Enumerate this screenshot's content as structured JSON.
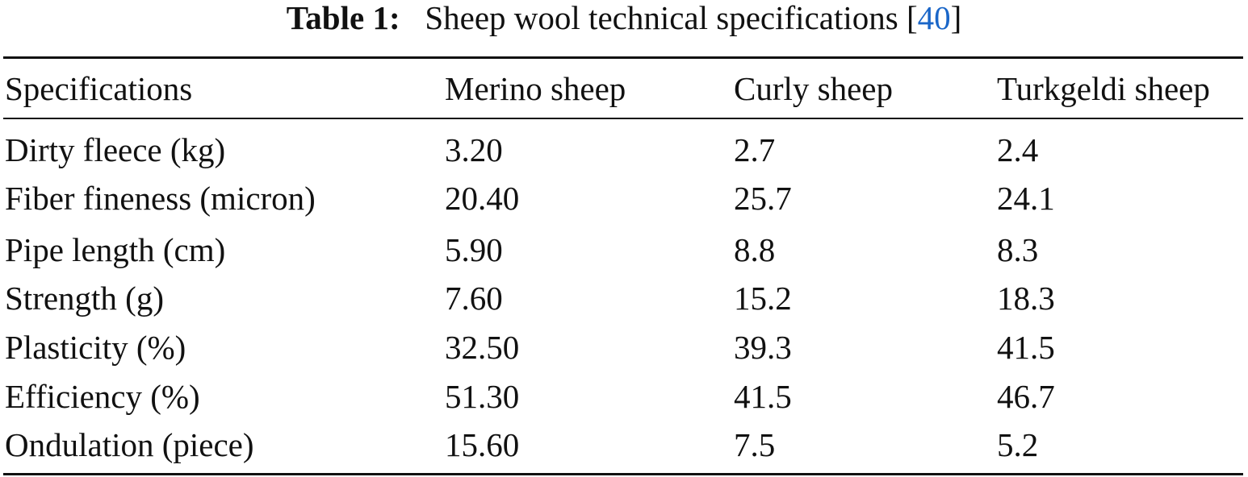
{
  "caption": {
    "label": "Table 1:",
    "text": "Sheep wool technical specifications",
    "ref_open": "[",
    "ref": "40",
    "ref_close": "]"
  },
  "table": {
    "headers": [
      "Specifications",
      "Merino sheep",
      "Curly sheep",
      "Turkgeldi sheep"
    ],
    "rows": [
      [
        "Dirty fleece (kg)",
        "3.20",
        "2.7",
        "2.4"
      ],
      [
        "Fiber fineness (micron)",
        "20.40",
        "25.7",
        "24.1"
      ],
      [
        "Pipe length (cm)",
        "5.90",
        "8.8",
        "8.3"
      ],
      [
        "Strength (g)",
        "7.60",
        "15.2",
        "18.3"
      ],
      [
        "Plasticity (%)",
        "32.50",
        "39.3",
        "41.5"
      ],
      [
        "Efficiency (%)",
        "51.30",
        "41.5",
        "46.7"
      ],
      [
        "Ondulation (piece)",
        "15.60",
        "7.5",
        "5.2"
      ]
    ]
  }
}
